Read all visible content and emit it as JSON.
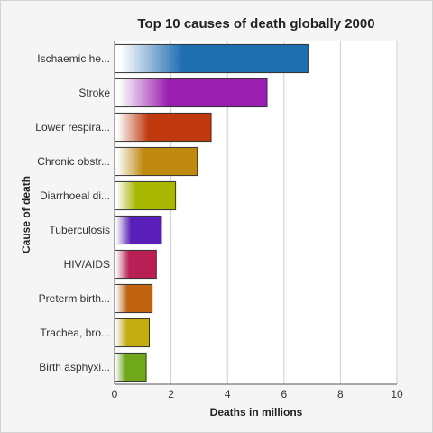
{
  "chart_data": {
    "type": "bar",
    "orientation": "horizontal",
    "title": "Top 10 causes of death globally 2000",
    "xlabel": "Deaths in millions",
    "ylabel": "Cause of death",
    "xlim": [
      0,
      10
    ],
    "xticks": [
      "0",
      "2",
      "4",
      "6",
      "8",
      "10"
    ],
    "grid": "vertical",
    "categories": [
      "Ischaemic he...",
      "Stroke",
      "Lower respira...",
      "Chronic obstr...",
      "Diarrhoeal di...",
      "Tuberculosis",
      "HIV/AIDS",
      "Preterm birth...",
      "Trachea, bro...",
      "Birth asphyxi..."
    ],
    "values": [
      6.85,
      5.4,
      3.42,
      2.93,
      2.16,
      1.66,
      1.48,
      1.33,
      1.23,
      1.12
    ],
    "colors": [
      "#1f6fb0",
      "#9a1fb0",
      "#c0390f",
      "#c08a10",
      "#a8b800",
      "#5a1fb8",
      "#b81f55",
      "#c0620f",
      "#c2ae12",
      "#6fa81a"
    ]
  }
}
